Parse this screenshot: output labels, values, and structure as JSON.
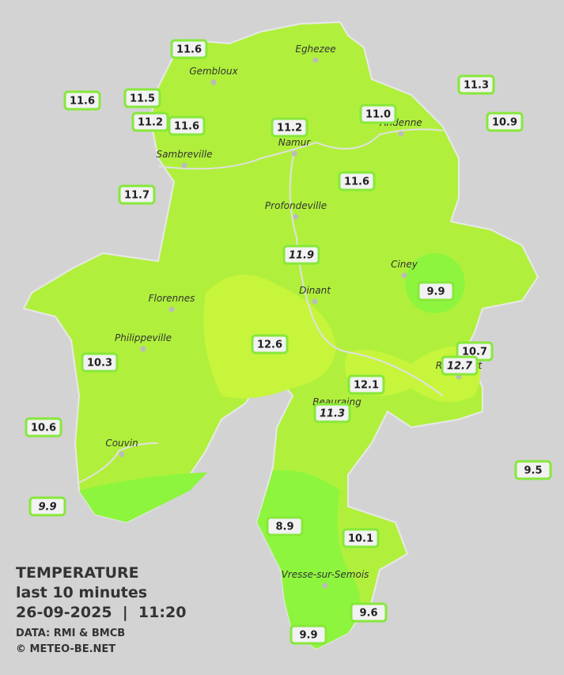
{
  "legend": {
    "title": "TEMPERATURE",
    "period": "last 10 minutes",
    "datetime": "26-09-2025  |  11:20",
    "source": "DATA: RMI & BMCB",
    "copyright": "© METEO-BE.NET"
  },
  "cities": [
    "Eghezee",
    "Gembloux",
    "Andenne",
    "Namur",
    "Sambreville",
    "Profondeville",
    "Ciney",
    "Dinant",
    "Florennes",
    "Philippeville",
    "Rochefort",
    "Beauraing",
    "Couvin",
    "Vresse-sur-Semois"
  ],
  "stations": [
    "11.6",
    "11.6",
    "11.5",
    "11.2",
    "11.6",
    "11.2",
    "11.0",
    "11.3",
    "10.9",
    "11.6",
    "11.7",
    "11.9",
    "9.9",
    "12.6",
    "10.3",
    "10.7",
    "12.7",
    "12.1",
    "11.3",
    "10.6",
    "9.5",
    "9.9",
    "8.9",
    "10.1",
    "9.6",
    "9.9"
  ]
}
